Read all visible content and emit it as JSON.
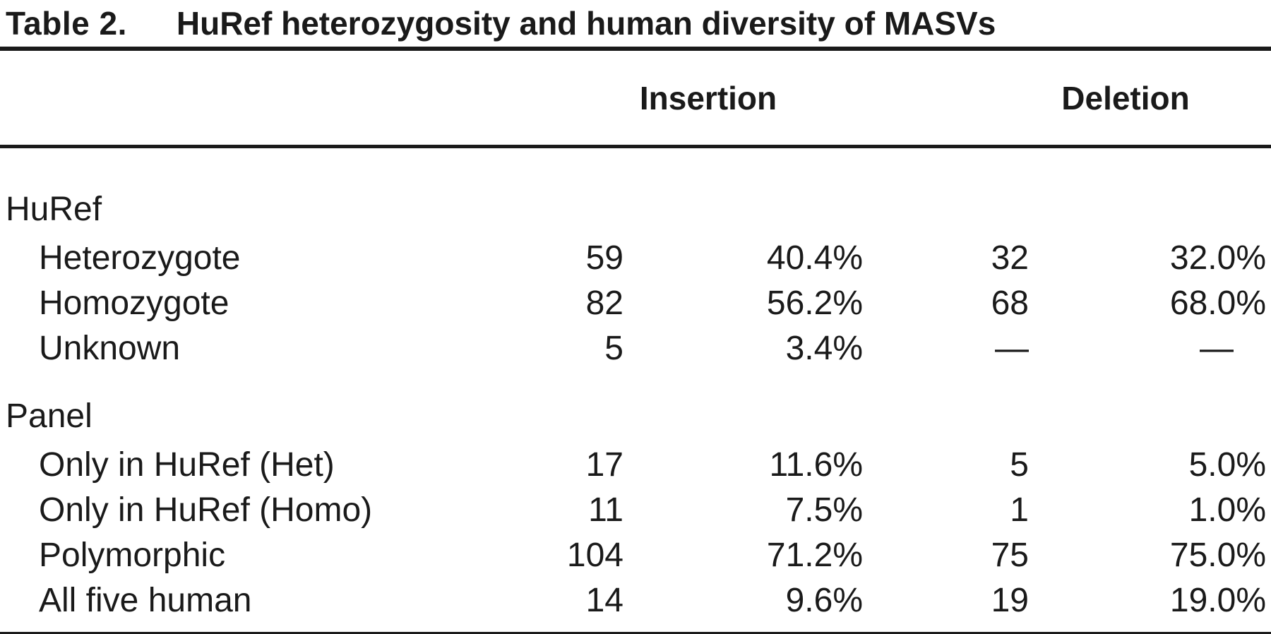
{
  "title": {
    "label": "Table 2.",
    "text": "HuRef heterozygosity and human diversity of MASVs"
  },
  "column_groups": {
    "insertion": "Insertion",
    "deletion": "Deletion"
  },
  "table": {
    "rows": [
      {
        "type": "group",
        "label": "HuRef"
      },
      {
        "type": "data",
        "label": "Heterozygote",
        "ins_count": "59",
        "ins_pct": "40.4%",
        "del_count": "32",
        "del_pct": "32.0%"
      },
      {
        "type": "data",
        "label": "Homozygote",
        "ins_count": "82",
        "ins_pct": "56.2%",
        "del_count": "68",
        "del_pct": "68.0%"
      },
      {
        "type": "data",
        "label": "Unknown",
        "ins_count": "5",
        "ins_pct": "3.4%",
        "del_count": "—",
        "del_pct": "—"
      },
      {
        "type": "group",
        "label": "Panel"
      },
      {
        "type": "data",
        "label": "Only in HuRef (Het)",
        "ins_count": "17",
        "ins_pct": "11.6%",
        "del_count": "5",
        "del_pct": "5.0%"
      },
      {
        "type": "data",
        "label": "Only in HuRef (Homo)",
        "ins_count": "11",
        "ins_pct": "7.5%",
        "del_count": "1",
        "del_pct": "1.0%"
      },
      {
        "type": "data",
        "label": "Polymorphic",
        "ins_count": "104",
        "ins_pct": "71.2%",
        "del_count": "75",
        "del_pct": "75.0%"
      },
      {
        "type": "data",
        "label": "All five human",
        "ins_count": "14",
        "ins_pct": "9.6%",
        "del_count": "19",
        "del_pct": "19.0%"
      }
    ]
  },
  "colors": {
    "text": "#1a1a1a",
    "background": "#ffffff",
    "rule": "#1a1a1a"
  }
}
